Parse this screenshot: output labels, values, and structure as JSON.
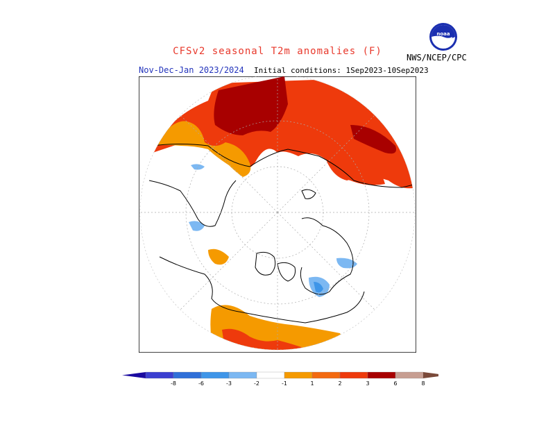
{
  "header": {
    "title": "CFSv2 seasonal T2m anomalies (F)",
    "title_color": "#e8382b",
    "season": "Nov-Dec-Jan 2023/2024",
    "season_color": "#2233bb",
    "initial_conditions": "Initial conditions: 1Sep2023-10Sep2023",
    "agency": "NWS/NCEP/CPC",
    "logo_icon": "noaa-logo-icon"
  },
  "map": {
    "projection": "north-polar-stereographic",
    "background": "#ffffff",
    "gridlines": true
  },
  "legend": {
    "labels": [
      "-8",
      "-6",
      "-3",
      "-2",
      "-1",
      "1",
      "2",
      "3",
      "6",
      "8"
    ],
    "colors": [
      "#1a0aa0",
      "#3b3fd0",
      "#2f6fd8",
      "#3e95e8",
      "#7cb8f2",
      "#ffffff",
      "#f59a00",
      "#f36a10",
      "#ee3a0c",
      "#a80000",
      "#c79e92",
      "#7a4a3a"
    ]
  }
}
